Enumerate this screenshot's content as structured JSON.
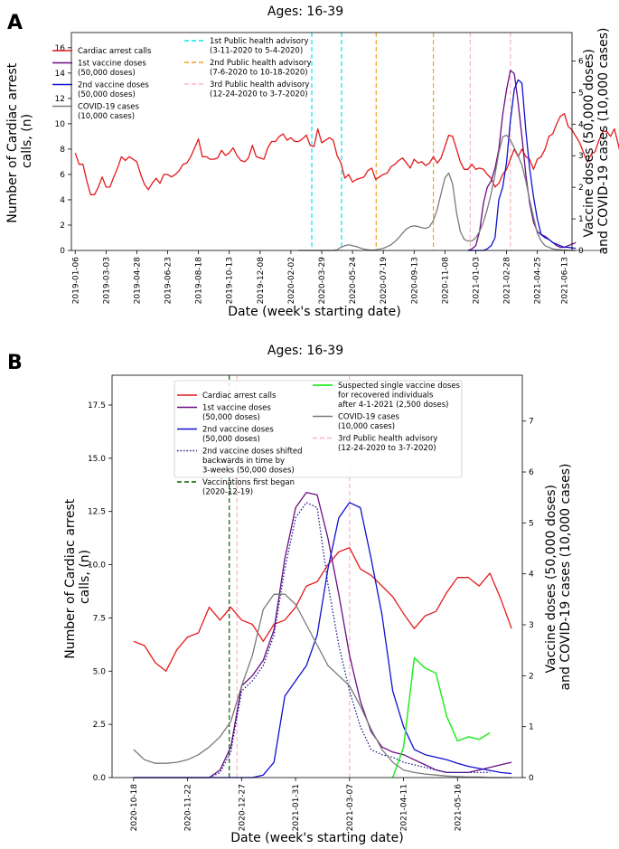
{
  "colors": {
    "cardiac": "#e31a1c",
    "dose1": "#6a0d83",
    "dose2": "#1010d0",
    "dose2_shifted": "#1a1a8c",
    "covid": "#7a7a7a",
    "advisory1": "#00e5ee",
    "advisory2": "#f0a020",
    "advisory3": "#f7b6c2",
    "vacc_began": "#006400",
    "recovered": "#22ee22"
  },
  "panel_a": {
    "letter": "A",
    "title": "Ages: 16-39",
    "xlabel": "Date (week's starting date)",
    "ylabel_lines": [
      "Number of Cardiac arrest",
      "calls, (n)"
    ],
    "y2label_lines": [
      "Vaccine doses (50,000 doses)",
      "and COVID-19 cases (10,000 cases)"
    ],
    "ylim": [
      0,
      17.2
    ],
    "y2lim": [
      0,
      6.9
    ],
    "yticks": [
      "0",
      "2",
      "4",
      "6",
      "8",
      "10",
      "12",
      "14",
      "16"
    ],
    "y2ticks": [
      "0",
      "1",
      "2",
      "3",
      "4",
      "5",
      "6"
    ],
    "xticks": [
      "2019-01-06",
      "2019-03-03",
      "2019-04-28",
      "2019-06-23",
      "2019-08-18",
      "2019-10-13",
      "2019-12-08",
      "2020-02-02",
      "2020-03-29",
      "2020-05-24",
      "2020-07-19",
      "2020-09-13",
      "2020-11-08",
      "2021-01-03",
      "2021-02-28",
      "2021-04-25",
      "2021-06-13"
    ],
    "legend_left": [
      {
        "label_lines": [
          "Cardiac arrest calls"
        ],
        "style": "cardiac"
      },
      {
        "label_lines": [
          "1st vaccine doses",
          "(50,000 doses)"
        ],
        "style": "dose1"
      },
      {
        "label_lines": [
          "2nd vaccine doses",
          "(50,000 doses)"
        ],
        "style": "dose2"
      },
      {
        "label_lines": [
          "COVID-19 cases",
          "(10,000 cases)"
        ],
        "style": "covid"
      }
    ],
    "legend_right": [
      {
        "label_lines": [
          "1st Public health advisory",
          "(3-11-2020 to 5-4-2020)"
        ],
        "style": "advisory1"
      },
      {
        "label_lines": [
          "2nd Public health advisory",
          "(7-6-2020 to 10-18-2020)"
        ],
        "style": "advisory2"
      },
      {
        "label_lines": [
          "3rd Public health advisory",
          "(12-24-2020 to 3-7-2020)"
        ],
        "style": "advisory3"
      }
    ]
  },
  "panel_b": {
    "letter": "B",
    "title": "Ages: 16-39",
    "xlabel": "Date (week's starting date)",
    "ylabel_lines": [
      "Number of Cardiac arrest",
      "calls, (n)"
    ],
    "y2label_lines": [
      "Vaccine doses (50,000 doses)",
      "and COVID-19 cases (10,000 cases)"
    ],
    "ylim": [
      0,
      18.9
    ],
    "y2lim": [
      0,
      7.9
    ],
    "yticks": [
      "0.0",
      "2.5",
      "5.0",
      "7.5",
      "10.0",
      "12.5",
      "15.0",
      "17.5"
    ],
    "y2ticks": [
      "0",
      "1",
      "2",
      "3",
      "4",
      "5",
      "6",
      "7"
    ],
    "xticks": [
      "2020-10-18",
      "2020-11-22",
      "2020-12-27",
      "2021-01-31",
      "2021-03-07",
      "2021-04-11",
      "2021-05-16"
    ],
    "legend_left": [
      {
        "label_lines": [
          "Cardiac arrest calls"
        ],
        "style": "cardiac"
      },
      {
        "label_lines": [
          "1st vaccine doses",
          "(50,000 doses)"
        ],
        "style": "dose1"
      },
      {
        "label_lines": [
          "2nd vaccine doses",
          "(50,000 doses)"
        ],
        "style": "dose2"
      },
      {
        "label_lines": [
          "2nd vaccine doses shifted",
          "backwards in time by",
          "3-weeks (50,000 doses)"
        ],
        "style": "dose2_shifted"
      },
      {
        "label_lines": [
          "Vaccinations first began",
          "(2020-12-19)"
        ],
        "style": "vacc_began"
      }
    ],
    "legend_right": [
      {
        "label_lines": [
          "Suspected single vaccine doses",
          "for recovered individuals",
          "after 4-1-2021 (2,500 doses)"
        ],
        "style": "recovered"
      },
      {
        "label_lines": [
          "COVID-19 cases",
          "(10,000 cases)"
        ],
        "style": "covid"
      },
      {
        "label_lines": [
          "3rd Public health advisory",
          "(12-24-2020 to 3-7-2020)"
        ],
        "style": "advisory3"
      }
    ]
  },
  "chart_data": [
    {
      "type": "line",
      "title": "Ages: 16-39",
      "xlabel": "Date (week's starting date)",
      "ylabel": "Number of Cardiac arrest calls, (n)",
      "y2label": "Vaccine doses (50,000 doses) and COVID-19 cases (10,000 cases)",
      "x_start": "2019-01-06",
      "x_step_days": 7,
      "ylim": [
        0,
        17.2
      ],
      "y2lim": [
        0,
        6.9
      ],
      "series": [
        {
          "name": "Cardiac arrest calls",
          "axis": "left",
          "values": [
            7.7,
            6.8,
            6.8,
            5.5,
            4.4,
            4.4,
            5.0,
            5.8,
            5.0,
            5.0,
            5.8,
            6.5,
            7.4,
            7.1,
            7.4,
            7.2,
            7.0,
            6.0,
            5.2,
            4.8,
            5.3,
            5.7,
            5.3,
            6.0,
            6.0,
            5.8,
            6.0,
            6.3,
            6.8,
            6.9,
            7.4,
            8.1,
            8.8,
            7.4,
            7.4,
            7.2,
            7.2,
            7.3,
            7.9,
            7.5,
            7.7,
            8.1,
            7.5,
            7.1,
            7.0,
            7.3,
            8.3,
            7.4,
            7.3,
            7.2,
            8.1,
            8.6,
            8.6,
            9.0,
            9.2,
            8.7,
            8.9,
            8.6,
            8.6,
            8.8,
            9.1,
            8.3,
            8.2,
            9.6,
            8.5,
            8.7,
            8.9,
            8.7,
            7.5,
            6.9,
            5.7,
            6.0,
            5.4,
            5.6,
            5.7,
            5.8,
            6.3,
            6.5,
            5.6,
            5.8,
            6.0,
            6.1,
            6.6,
            6.8,
            7.1,
            7.3,
            6.9,
            6.5,
            7.2,
            6.9,
            7.0,
            6.7,
            6.9,
            7.4,
            6.9,
            7.3,
            8.2,
            9.1,
            9.0,
            8.0,
            7.0,
            6.4,
            6.4,
            6.8,
            6.4,
            6.5,
            6.4,
            6.0,
            5.7,
            5.0,
            5.3,
            6.0,
            6.4,
            7.2,
            8.0,
            7.4,
            8.0,
            7.4,
            7.2,
            6.4,
            7.2,
            7.4,
            8.0,
            9.0,
            9.2,
            10.0,
            10.6,
            10.8,
            9.8,
            9.5,
            9.0,
            8.5,
            7.7,
            7.0,
            7.6,
            7.8,
            8.7,
            9.4,
            9.4,
            9.0,
            9.6,
            8.4,
            7.0
          ]
        },
        {
          "name": "1st vaccine doses (50,000 doses)",
          "axis": "right",
          "start_week": 102,
          "values": [
            0.0,
            0.05,
            0.15,
            0.6,
            1.5,
            2.0,
            2.2,
            2.6,
            3.2,
            4.3,
            5.1,
            5.7,
            5.6,
            4.7,
            3.6,
            2.4,
            1.5,
            0.9,
            0.6,
            0.5,
            0.45,
            0.35,
            0.25,
            0.15,
            0.1,
            0.1,
            0.15,
            0.2,
            0.25
          ]
        },
        {
          "name": "2nd vaccine doses (50,000 doses)",
          "axis": "right",
          "start_week": 102,
          "values": [
            0.0,
            0.0,
            0.0,
            0.0,
            0.0,
            0.05,
            0.15,
            0.4,
            1.6,
            2.0,
            2.8,
            4.1,
            5.1,
            5.4,
            5.3,
            3.8,
            2.6,
            1.7,
            1.0,
            0.5,
            0.4,
            0.35,
            0.25,
            0.2,
            0.15,
            0.1,
            0.1,
            0.08,
            0.07
          ]
        },
        {
          "name": "COVID-19 cases (10,000 cases)",
          "axis": "right",
          "start_week": 58,
          "values": [
            0.0,
            0.0,
            0.0,
            0.0,
            0.0,
            0.0,
            0.0,
            0.0,
            0.0,
            0.0,
            0.02,
            0.1,
            0.15,
            0.18,
            0.15,
            0.12,
            0.08,
            0.04,
            0.02,
            0.01,
            0.02,
            0.04,
            0.07,
            0.12,
            0.18,
            0.28,
            0.4,
            0.55,
            0.68,
            0.75,
            0.78,
            0.76,
            0.72,
            0.7,
            0.75,
            0.95,
            1.3,
            1.8,
            2.3,
            2.45,
            2.1,
            1.2,
            0.6,
            0.35,
            0.3,
            0.3,
            0.4,
            0.6,
            0.9,
            1.3,
            1.8,
            2.4,
            3.1,
            3.6,
            3.65,
            3.5,
            3.25,
            3.0,
            2.7,
            2.2,
            1.6,
            1.05,
            0.55,
            0.3,
            0.15,
            0.1,
            0.05,
            0.03,
            0.02,
            0.01,
            0.01,
            0.0,
            0.0,
            0.0,
            0.0,
            0.0,
            0.0,
            0.0,
            0.0,
            0.0
          ]
        }
      ],
      "vlines": [
        {
          "date": "2020-03-11",
          "label": "1st Public health advisory"
        },
        {
          "date": "2020-05-04",
          "label": "1st Public health advisory"
        },
        {
          "date": "2020-07-06",
          "label": "2nd Public health advisory"
        },
        {
          "date": "2020-10-18",
          "label": "2nd Public health advisory"
        },
        {
          "date": "2020-12-24",
          "label": "3rd Public health advisory"
        },
        {
          "date": "2021-03-07",
          "label": "3rd Public health advisory"
        }
      ]
    },
    {
      "type": "line",
      "title": "Ages: 16-39",
      "xlabel": "Date (week's starting date)",
      "ylabel": "Number of Cardiac arrest calls, (n)",
      "y2label": "Vaccine doses (50,000 doses) and COVID-19 cases (10,000 cases)",
      "x_start": "2020-10-18",
      "x_step_days": 7,
      "ylim": [
        0,
        18.9
      ],
      "y2lim": [
        0,
        7.9
      ],
      "series": [
        {
          "name": "Cardiac arrest calls",
          "axis": "left",
          "start_week": 0,
          "values": [
            6.4,
            6.2,
            5.4,
            5.0,
            6.0,
            6.6,
            6.8,
            8.0,
            7.4,
            8.0,
            7.4,
            7.2,
            6.4,
            7.2,
            7.4,
            8.0,
            9.0,
            9.2,
            10.0,
            10.6,
            10.8,
            9.8,
            9.5,
            9.0,
            8.5,
            7.7,
            7.0,
            7.6,
            7.8,
            8.7,
            9.4,
            9.4,
            9.0,
            9.6,
            8.4,
            7.0
          ]
        },
        {
          "name": "1st vaccine doses (50,000 doses)",
          "axis": "right",
          "start_week": 0,
          "values": [
            0.0,
            0.0,
            0.0,
            0.0,
            0.0,
            0.0,
            0.0,
            0.0,
            0.15,
            0.6,
            1.8,
            2.0,
            2.3,
            2.9,
            4.3,
            5.3,
            5.6,
            5.55,
            4.7,
            3.6,
            2.4,
            1.5,
            0.9,
            0.6,
            0.5,
            0.45,
            0.35,
            0.25,
            0.15,
            0.1,
            0.1,
            0.1,
            0.15,
            0.2,
            0.25,
            0.3
          ]
        },
        {
          "name": "2nd vaccine doses (50,000 doses)",
          "axis": "right",
          "start_week": 0,
          "values": [
            0.0,
            0.0,
            0.0,
            0.0,
            0.0,
            0.0,
            0.0,
            0.0,
            0.0,
            0.0,
            0.0,
            0.0,
            0.05,
            0.3,
            1.6,
            1.9,
            2.2,
            2.8,
            4.1,
            5.1,
            5.4,
            5.3,
            4.3,
            3.2,
            1.7,
            1.0,
            0.55,
            0.45,
            0.4,
            0.35,
            0.28,
            0.22,
            0.18,
            0.14,
            0.1,
            0.08
          ]
        },
        {
          "name": "2nd vaccine doses shifted backwards in time by 3-weeks (50,000 doses)",
          "axis": "right",
          "start_week": 0,
          "values": [
            0.0,
            0.0,
            0.0,
            0.0,
            0.0,
            0.0,
            0.0,
            0.0,
            0.1,
            0.5,
            1.7,
            1.9,
            2.2,
            2.8,
            4.1,
            5.1,
            5.4,
            5.3,
            3.8,
            2.6,
            1.7,
            1.0,
            0.55,
            0.45,
            0.4,
            0.3,
            0.25,
            0.2,
            0.15,
            0.1,
            0.1,
            0.1,
            0.1,
            0.1
          ]
        },
        {
          "name": "Suspected single vaccine doses for recovered individuals after 4-1-2021 (2,500 doses)",
          "axis": "right",
          "start_week": 24,
          "values": [
            0.0,
            0.6,
            2.35,
            2.15,
            2.05,
            1.2,
            0.72,
            0.8,
            0.75,
            0.88
          ]
        },
        {
          "name": "COVID-19 cases (10,000 cases)",
          "axis": "right",
          "start_week": 0,
          "values": [
            0.55,
            0.35,
            0.28,
            0.28,
            0.3,
            0.35,
            0.45,
            0.6,
            0.8,
            1.1,
            1.8,
            2.4,
            3.3,
            3.6,
            3.6,
            3.4,
            3.0,
            2.6,
            2.2,
            2.0,
            1.8,
            1.4,
            0.95,
            0.55,
            0.3,
            0.15,
            0.1,
            0.07,
            0.05,
            0.03,
            0.02,
            0.01,
            0.01,
            0.0,
            0.0,
            0.0
          ]
        }
      ],
      "vlines": [
        {
          "date": "2020-12-19",
          "label": "Vaccinations first began"
        },
        {
          "date": "2020-12-24",
          "label": "3rd Public health advisory"
        },
        {
          "date": "2021-03-07",
          "label": "3rd Public health advisory"
        }
      ]
    }
  ]
}
